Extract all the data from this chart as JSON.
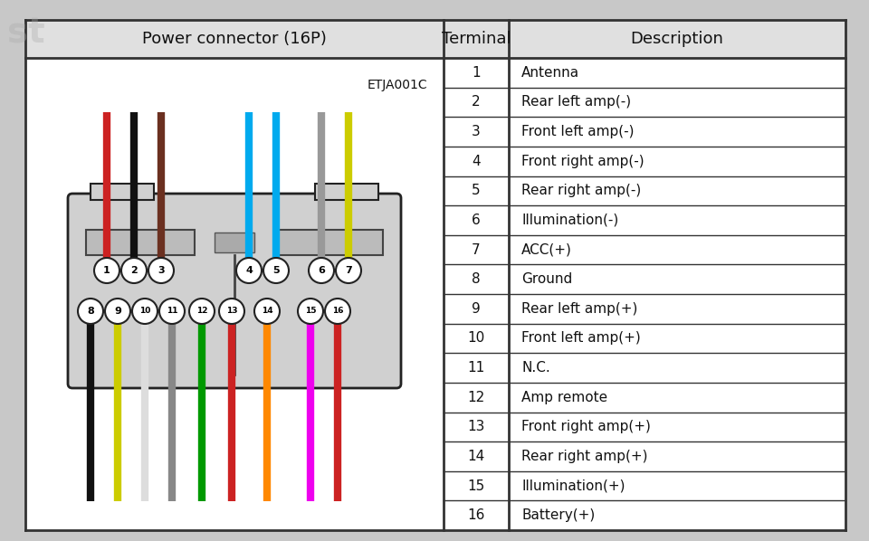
{
  "title_col1": "Power connector (16P)",
  "title_col2": "Terminal",
  "title_col3": "Description",
  "code_label": "ETJA001C",
  "terminals": [
    1,
    2,
    3,
    4,
    5,
    6,
    7,
    8,
    9,
    10,
    11,
    12,
    13,
    14,
    15,
    16
  ],
  "descriptions": [
    "Antenna",
    "Rear left amp(-)",
    "Front left amp(-)",
    "Front right amp(-)",
    "Rear right amp(-)",
    "Illumination(-)",
    "ACC(+)",
    "Ground",
    "Rear left amp(+)",
    "Front left amp(+)",
    "N.C.",
    "Amp remote",
    "Front right amp(+)",
    "Rear right amp(+)",
    "Illumination(+)",
    "Battery(+)"
  ],
  "bg_color": "#c8c8c8",
  "table_bg": "#ffffff",
  "header_bg": "#e0e0e0",
  "border_color": "#333333",
  "top_wire_colors": [
    "#cc2222",
    "#111111",
    "#6b3020",
    "#00aaee",
    "#00aaee",
    "#999999",
    "#cccc00"
  ],
  "top_pin_numbers": [
    1,
    2,
    3,
    4,
    5,
    6,
    7
  ],
  "bot_wire_colors": [
    "#111111",
    "#cccc00",
    "#dddddd",
    "#888888",
    "#009900",
    "#cc2222",
    "#ff8800",
    "#ee00ee",
    "#cc2222"
  ],
  "bot_pin_numbers": [
    8,
    9,
    10,
    11,
    12,
    13,
    14,
    15,
    16
  ],
  "text_color": "#111111",
  "font_size_header": 13,
  "font_size_body": 11,
  "watermark": "st"
}
